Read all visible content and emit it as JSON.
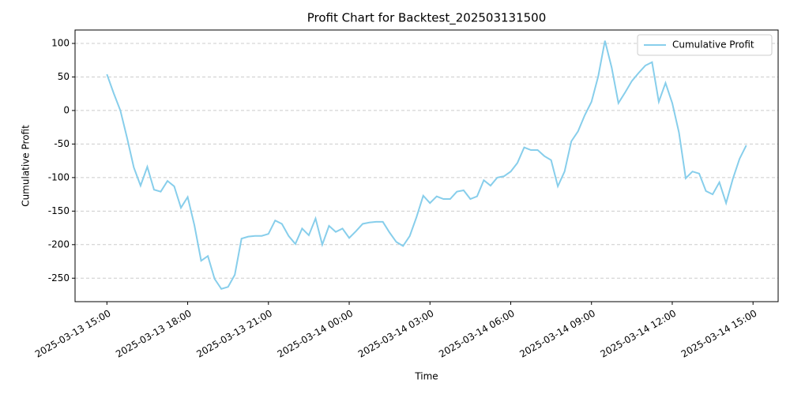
{
  "chart_data": {
    "type": "line",
    "title": "Profit Chart for Backtest_202503131500",
    "x_label": "Time",
    "y_label": "Cumulative Profit",
    "x": [
      "2025-03-13 15:00",
      "2025-03-13 15:15",
      "2025-03-13 15:30",
      "2025-03-13 15:45",
      "2025-03-13 16:00",
      "2025-03-13 16:15",
      "2025-03-13 16:30",
      "2025-03-13 16:45",
      "2025-03-13 17:00",
      "2025-03-13 17:15",
      "2025-03-13 17:30",
      "2025-03-13 17:45",
      "2025-03-13 18:00",
      "2025-03-13 18:15",
      "2025-03-13 18:30",
      "2025-03-13 18:45",
      "2025-03-13 19:00",
      "2025-03-13 19:15",
      "2025-03-13 19:30",
      "2025-03-13 19:45",
      "2025-03-13 20:00",
      "2025-03-13 20:15",
      "2025-03-13 20:30",
      "2025-03-13 20:45",
      "2025-03-13 21:00",
      "2025-03-13 21:15",
      "2025-03-13 21:30",
      "2025-03-13 21:45",
      "2025-03-13 22:00",
      "2025-03-13 22:15",
      "2025-03-13 22:30",
      "2025-03-13 22:45",
      "2025-03-13 23:00",
      "2025-03-13 23:15",
      "2025-03-13 23:30",
      "2025-03-13 23:45",
      "2025-03-14 00:00",
      "2025-03-14 00:15",
      "2025-03-14 00:30",
      "2025-03-14 00:45",
      "2025-03-14 01:00",
      "2025-03-14 01:15",
      "2025-03-14 01:30",
      "2025-03-14 01:45",
      "2025-03-14 02:00",
      "2025-03-14 02:15",
      "2025-03-14 02:30",
      "2025-03-14 02:45",
      "2025-03-14 03:00",
      "2025-03-14 03:15",
      "2025-03-14 03:30",
      "2025-03-14 03:45",
      "2025-03-14 04:00",
      "2025-03-14 04:15",
      "2025-03-14 04:30",
      "2025-03-14 04:45",
      "2025-03-14 05:00",
      "2025-03-14 05:15",
      "2025-03-14 05:30",
      "2025-03-14 05:45",
      "2025-03-14 06:00",
      "2025-03-14 06:15",
      "2025-03-14 06:30",
      "2025-03-14 06:45",
      "2025-03-14 07:00",
      "2025-03-14 07:15",
      "2025-03-14 07:30",
      "2025-03-14 07:45",
      "2025-03-14 08:00",
      "2025-03-14 08:15",
      "2025-03-14 08:30",
      "2025-03-14 08:45",
      "2025-03-14 09:00",
      "2025-03-14 09:15",
      "2025-03-14 09:30",
      "2025-03-14 09:45",
      "2025-03-14 10:00",
      "2025-03-14 10:15",
      "2025-03-14 10:30",
      "2025-03-14 10:45",
      "2025-03-14 11:00",
      "2025-03-14 11:15",
      "2025-03-14 11:30",
      "2025-03-14 11:45",
      "2025-03-14 12:00",
      "2025-03-14 12:15",
      "2025-03-14 12:30",
      "2025-03-14 12:45",
      "2025-03-14 13:00",
      "2025-03-14 13:15",
      "2025-03-14 13:30",
      "2025-03-14 13:45",
      "2025-03-14 14:00",
      "2025-03-14 14:15",
      "2025-03-14 14:30",
      "2025-03-14 14:45"
    ],
    "series": [
      {
        "name": "Cumulative Profit",
        "color": "#87ceeb",
        "values": [
          54,
          26,
          0,
          -41,
          -85,
          -112,
          -84,
          -118,
          -121,
          -105,
          -113,
          -145,
          -129,
          -171,
          -224,
          -217,
          -251,
          -266,
          -263,
          -245,
          -191,
          -188,
          -187,
          -187,
          -184,
          -164,
          -169,
          -187,
          -199,
          -176,
          -186,
          -161,
          -200,
          -172,
          -181,
          -176,
          -190,
          -180,
          -169,
          -167,
          -166,
          -166,
          -182,
          -196,
          -202,
          -187,
          -159,
          -127,
          -138,
          -128,
          -132,
          -132,
          -121,
          -119,
          -132,
          -128,
          -104,
          -112,
          -100,
          -98,
          -91,
          -78,
          -55,
          -59,
          -59,
          -68,
          -74,
          -113,
          -91,
          -46,
          -31,
          -7,
          13,
          51,
          104,
          64,
          11,
          27,
          44,
          56,
          67,
          72,
          13,
          41,
          11,
          -33,
          -101,
          -91,
          -94,
          -120,
          -125,
          -107,
          -138,
          -102,
          -72,
          -52
        ]
      }
    ],
    "xlim": [
      "2025-03-13 13:49",
      "2025-03-14 15:56"
    ],
    "xticks": [
      "2025-03-13 15:00",
      "2025-03-13 18:00",
      "2025-03-13 21:00",
      "2025-03-14 00:00",
      "2025-03-14 03:00",
      "2025-03-14 06:00",
      "2025-03-14 09:00",
      "2025-03-14 12:00",
      "2025-03-14 15:00"
    ],
    "ylim": [
      -285,
      120
    ],
    "yticks": [
      -250,
      -200,
      -150,
      -100,
      -50,
      0,
      50,
      100
    ],
    "grid": true,
    "legend": "upper right"
  }
}
